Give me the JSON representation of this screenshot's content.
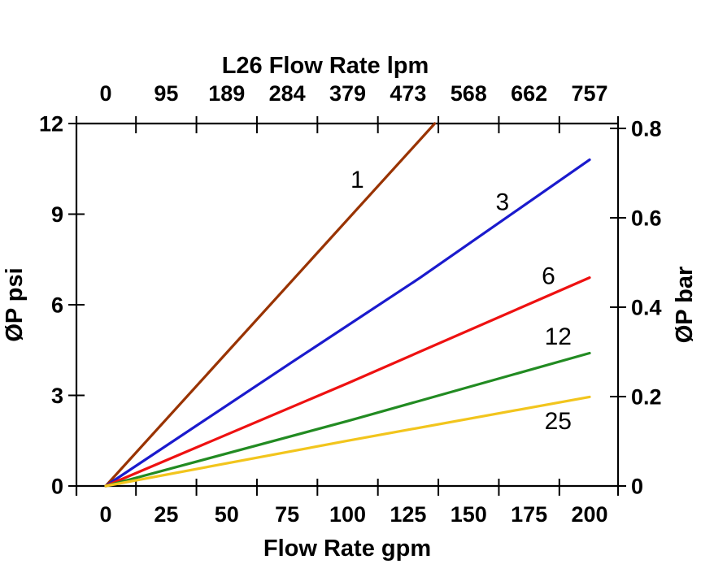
{
  "chart_data": {
    "type": "line",
    "title": "L26 Flow Rate lpm",
    "x_bottom": {
      "label": "Flow Rate gpm",
      "unit": "gpm",
      "ticks": [
        0,
        25,
        50,
        75,
        100,
        125,
        150,
        175,
        200
      ],
      "range": [
        0,
        200
      ]
    },
    "x_top": {
      "unit": "lpm",
      "tick_labels": [
        "0",
        "95",
        "189",
        "284",
        "379",
        "473",
        "568",
        "662",
        "757"
      ]
    },
    "y_left": {
      "label": "ØP psi",
      "unit": "psi",
      "ticks": [
        0,
        3,
        6,
        9,
        12
      ],
      "range": [
        0,
        12
      ]
    },
    "y_right": {
      "label": "ØP bar",
      "unit": "bar",
      "tick_labels": [
        "0",
        "0.2",
        "0.4",
        "0.6",
        "0.8"
      ],
      "tick_values": [
        0,
        0.2,
        0.4,
        0.6,
        0.8
      ]
    },
    "grid": false,
    "legend": "labels on curves",
    "series": [
      {
        "name": "1",
        "color": "#993300",
        "points_gpm_psi": [
          [
            0,
            0
          ],
          [
            136,
            12
          ]
        ],
        "label_at_gpm_psi": [
          104,
          10.15
        ]
      },
      {
        "name": "3",
        "color": "#1a1acd",
        "points_gpm_psi": [
          [
            0,
            0
          ],
          [
            77,
            4.1
          ],
          [
            130,
            6.9
          ],
          [
            200,
            10.8
          ]
        ],
        "label_at_gpm_psi": [
          164,
          9.4
        ]
      },
      {
        "name": "6",
        "color": "#ee1111",
        "points_gpm_psi": [
          [
            0,
            0
          ],
          [
            100,
            3.4
          ],
          [
            200,
            6.9
          ]
        ],
        "label_at_gpm_psi": [
          183,
          6.95
        ]
      },
      {
        "name": "12",
        "color": "#228b22",
        "points_gpm_psi": [
          [
            0,
            0
          ],
          [
            100,
            2.15
          ],
          [
            200,
            4.4
          ]
        ],
        "label_at_gpm_psi": [
          187,
          4.95
        ]
      },
      {
        "name": "25",
        "color": "#f2c51d",
        "points_gpm_psi": [
          [
            0,
            0
          ],
          [
            100,
            1.5
          ],
          [
            200,
            2.95
          ]
        ],
        "label_at_gpm_psi": [
          187,
          2.15
        ]
      }
    ],
    "colors": {
      "axis": "#000000",
      "background": "#ffffff",
      "text": "#000000"
    }
  }
}
